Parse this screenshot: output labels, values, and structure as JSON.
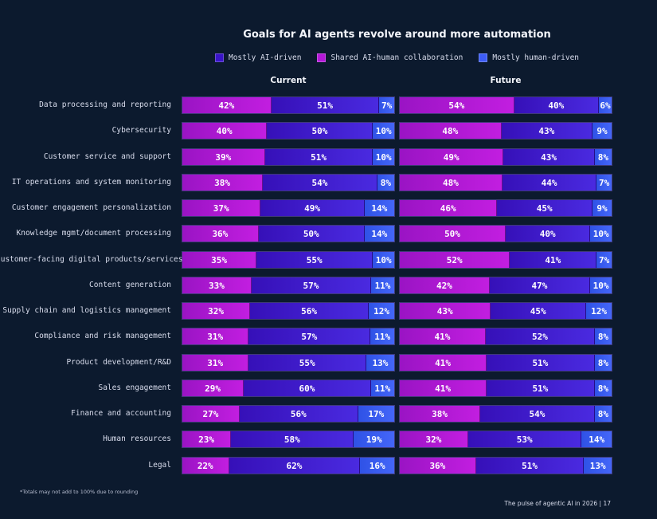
{
  "chart_data": {
    "type": "bar",
    "stacked": true,
    "orientation": "horizontal",
    "title": "Goals for AI agents revolve around more automation",
    "legend": [
      {
        "name": "Mostly AI-driven",
        "color": "#3a14c8"
      },
      {
        "name": "Shared AI-human collaboration",
        "color": "#b418d8"
      },
      {
        "name": "Mostly human-driven",
        "color": "#3d5cf5"
      }
    ],
    "categories": [
      "Data processing and reporting",
      "Cybersecurity",
      "Customer service and support",
      "IT operations and system monitoring",
      "Customer engagement personalization",
      "Knowledge mgmt/document processing",
      "Customer-facing digital products/services",
      "Content generation",
      "Supply chain and logistics management",
      "Compliance and risk management",
      "Product development/R&D",
      "Sales engagement",
      "Finance and accounting",
      "Human resources",
      "Legal"
    ],
    "panels": [
      {
        "title": "Current",
        "series": [
          {
            "name": "Shared AI-human collaboration",
            "values": [
              42,
              40,
              39,
              38,
              37,
              36,
              35,
              33,
              32,
              31,
              31,
              29,
              27,
              23,
              22
            ]
          },
          {
            "name": "Mostly AI-driven",
            "values": [
              51,
              50,
              51,
              54,
              49,
              50,
              55,
              57,
              56,
              57,
              55,
              60,
              56,
              58,
              62
            ]
          },
          {
            "name": "Mostly human-driven",
            "values": [
              7,
              10,
              10,
              8,
              14,
              14,
              10,
              11,
              12,
              11,
              13,
              11,
              17,
              19,
              16
            ]
          }
        ]
      },
      {
        "title": "Future",
        "series": [
          {
            "name": "Shared AI-human collaboration",
            "values": [
              54,
              48,
              49,
              48,
              46,
              50,
              52,
              42,
              43,
              41,
              41,
              41,
              38,
              32,
              36
            ]
          },
          {
            "name": "Mostly AI-driven",
            "values": [
              40,
              43,
              43,
              44,
              45,
              40,
              41,
              47,
              45,
              52,
              51,
              51,
              54,
              53,
              51
            ]
          },
          {
            "name": "Mostly human-driven",
            "values": [
              6,
              9,
              8,
              7,
              9,
              10,
              7,
              10,
              12,
              8,
              8,
              8,
              8,
              14,
              13
            ]
          }
        ]
      }
    ],
    "value_suffix": "%"
  },
  "footnote": "*Totals may not add to 100% due to rounding",
  "page_info": "The pulse of agentic AI in 2026 | 17"
}
